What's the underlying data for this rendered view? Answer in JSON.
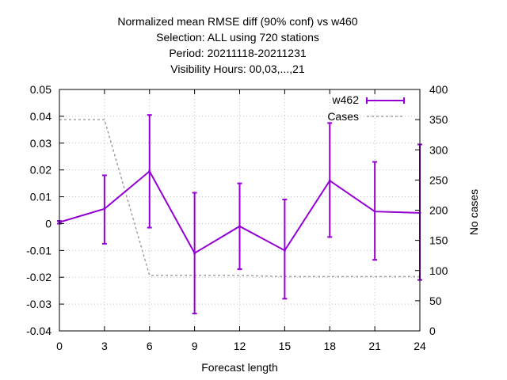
{
  "chart_data": {
    "type": "line",
    "title_lines": [
      "Normalized mean RMSE diff (90% conf) vs w460",
      "Selection: ALL using   720 stations",
      "Period: 20211118-20211231",
      "Visibility   Hours:  00,03,...,21"
    ],
    "xlabel": "Forecast length",
    "ylabel": "",
    "y2label": "No cases",
    "x": [
      0,
      3,
      6,
      9,
      12,
      15,
      18,
      21,
      24
    ],
    "xlim": [
      0,
      24
    ],
    "ylim": [
      -0.04,
      0.05
    ],
    "y2lim": [
      0,
      400
    ],
    "xticks": [
      "0",
      "3",
      "6",
      "9",
      "12",
      "15",
      "18",
      "21",
      "24"
    ],
    "yticks": [
      "0.05",
      "0.04",
      "0.03",
      "0.02",
      "0.01",
      "0",
      "-0.01",
      "-0.02",
      "-0.03",
      "-0.04"
    ],
    "y2ticks": [
      "400",
      "350",
      "300",
      "250",
      "200",
      "150",
      "100",
      "50",
      "0"
    ],
    "grid": true,
    "legend_position": "top-right",
    "series": [
      {
        "name": "w462",
        "color": "#9400d3",
        "values": [
          0.0005,
          0.0055,
          0.0195,
          -0.011,
          -0.001,
          -0.01,
          0.016,
          0.0045,
          0.004
        ],
        "err_low": [
          0.0,
          -0.0075,
          -0.0015,
          -0.0335,
          -0.017,
          -0.028,
          -0.005,
          -0.0135,
          -0.021
        ],
        "err_high": [
          0.001,
          0.018,
          0.0405,
          0.0115,
          0.015,
          0.009,
          0.0375,
          0.023,
          0.0295
        ]
      },
      {
        "name": "Cases",
        "color": "#a0a0a0",
        "axis": "right",
        "values": [
          350,
          350,
          92,
          92,
          92,
          90,
          90,
          90,
          90
        ]
      }
    ]
  }
}
